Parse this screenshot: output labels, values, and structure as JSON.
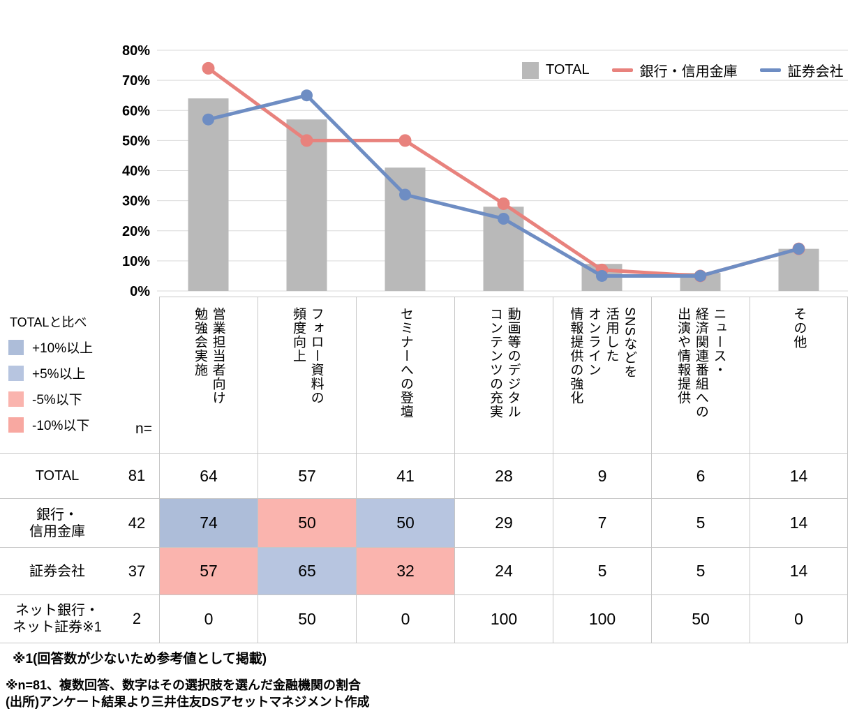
{
  "chart_data": {
    "type": "bar+line",
    "title": "",
    "categories": [
      "営業担当者向け勉強会実施",
      "フォロー資料の頻度向上",
      "セミナーへの登壇",
      "動画等のデジタルコンテンツの充実",
      "SNSなどを活用したオンライン情報提供の強化",
      "ニュース・経済関連番組への出演や情報提供",
      "その他"
    ],
    "series": [
      {
        "name": "TOTAL",
        "type": "bar",
        "color": "#b9b9b9",
        "values": [
          64,
          57,
          41,
          28,
          9,
          6,
          14
        ]
      },
      {
        "name": "銀行・信用金庫",
        "type": "line",
        "color": "#e8827d",
        "values": [
          74,
          50,
          50,
          29,
          7,
          5,
          14
        ]
      },
      {
        "name": "証券会社",
        "type": "line",
        "color": "#6e8dc3",
        "values": [
          57,
          65,
          32,
          24,
          5,
          5,
          14
        ]
      }
    ],
    "ylim": [
      0,
      80
    ],
    "ytick_step": 10,
    "ytick_format": "percent",
    "grid": true,
    "grid_color": "#d9d9d9",
    "legend_position": "top-right"
  },
  "diff_legend": {
    "title": "TOTALと比べ",
    "items": [
      {
        "key": "plus10",
        "label": "+10%以上",
        "color": "#adbdd9"
      },
      {
        "key": "plus5",
        "label": "+5%以上",
        "color": "#b7c5e0"
      },
      {
        "key": "minus5",
        "label": "-5%以下",
        "color": "#fab4ae"
      },
      {
        "key": "minus10",
        "label": "-10%以下",
        "color": "#f8a8a1"
      }
    ]
  },
  "table": {
    "n_label": "n=",
    "columns": [
      "営業担当者向け\n勉強会実施",
      "フォロー資料の\n頻度向上",
      "セミナーへの登壇",
      "動画等のデジタル\nコンテンツの充実",
      "SNSなどを\n活用した\nオンライン\n情報提供の強化",
      "ニュース・\n経済関連番組への\n出演や情報提供",
      "その他"
    ],
    "rows": [
      {
        "label": "TOTAL",
        "n": "81",
        "values": [
          "64",
          "57",
          "41",
          "28",
          "9",
          "6",
          "14"
        ],
        "highlights": [
          null,
          null,
          null,
          null,
          null,
          null,
          null
        ]
      },
      {
        "label": "銀行・\n信用金庫",
        "n": "42",
        "values": [
          "74",
          "50",
          "50",
          "29",
          "7",
          "5",
          "14"
        ],
        "highlights": [
          "plus10",
          "minus5",
          "plus5",
          null,
          null,
          null,
          null
        ]
      },
      {
        "label": "証券会社",
        "n": "37",
        "values": [
          "57",
          "65",
          "32",
          "24",
          "5",
          "5",
          "14"
        ],
        "highlights": [
          "minus5",
          "plus5",
          "minus5",
          null,
          null,
          null,
          null
        ]
      },
      {
        "label": "ネット銀行・\nネット証券※1",
        "n": "2",
        "values": [
          "0",
          "50",
          "0",
          "100",
          "100",
          "50",
          "0"
        ],
        "highlights": [
          null,
          null,
          null,
          null,
          null,
          null,
          null
        ]
      }
    ]
  },
  "footnotes": [
    "※1(回答数が少ないため参考値として掲載)",
    "※n=81、複数回答、数字はその選択肢を選んだ金融機関の割合",
    "(出所)アンケート結果より三井住友DSアセットマネジメント作成"
  ]
}
